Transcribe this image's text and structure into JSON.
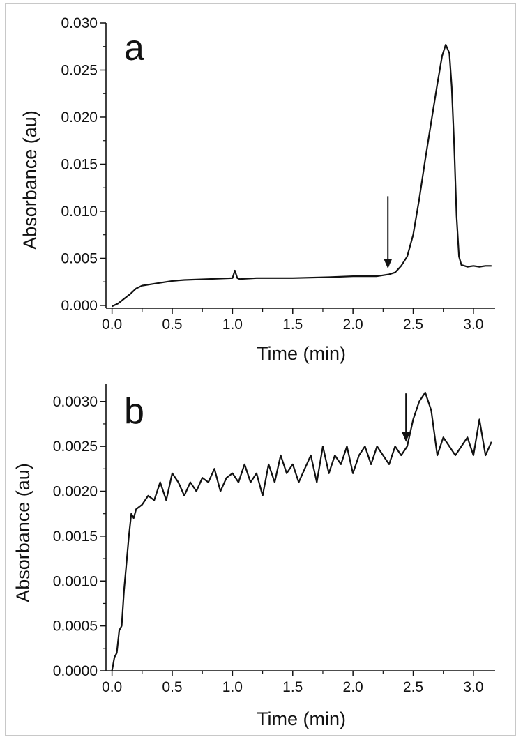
{
  "chart_data": [
    {
      "type": "line",
      "panel_label": "a",
      "xlabel": "Time (min)",
      "ylabel": "Absorbance (au)",
      "xlim": [
        -0.05,
        3.18
      ],
      "ylim": [
        -0.0003,
        0.03
      ],
      "x_ticks": [
        0.0,
        0.5,
        1.0,
        1.5,
        2.0,
        2.5,
        3.0
      ],
      "x_tick_labels": [
        "0.0",
        "0.5",
        "1.0",
        "1.5",
        "2.0",
        "2.5",
        "3.0"
      ],
      "y_ticks": [
        0.0,
        0.005,
        0.01,
        0.015,
        0.02,
        0.025,
        0.03
      ],
      "y_tick_labels": [
        "0.000",
        "0.005",
        "0.010",
        "0.015",
        "0.020",
        "0.025",
        "0.030"
      ],
      "arrow": {
        "x": 2.29,
        "y_from": 0.0116,
        "y_to": 0.0039
      },
      "series": [
        {
          "color": "#111111",
          "x": [
            0.0,
            0.05,
            0.1,
            0.15,
            0.2,
            0.25,
            0.3,
            0.4,
            0.5,
            0.6,
            0.8,
            1.0,
            1.02,
            1.04,
            1.06,
            1.2,
            1.5,
            1.8,
            2.0,
            2.2,
            2.3,
            2.35,
            2.4,
            2.45,
            2.5,
            2.55,
            2.6,
            2.65,
            2.7,
            2.74,
            2.77,
            2.8,
            2.82,
            2.84,
            2.86,
            2.88,
            2.9,
            2.95,
            3.0,
            3.05,
            3.1,
            3.15
          ],
          "y": [
            -0.0001,
            0.0002,
            0.0007,
            0.0012,
            0.0018,
            0.0021,
            0.0022,
            0.0024,
            0.0026,
            0.0027,
            0.0028,
            0.0029,
            0.0037,
            0.0029,
            0.0028,
            0.0029,
            0.0029,
            0.003,
            0.0031,
            0.0031,
            0.0033,
            0.0035,
            0.0042,
            0.0052,
            0.0075,
            0.0113,
            0.0155,
            0.0195,
            0.0235,
            0.0265,
            0.0277,
            0.0268,
            0.0232,
            0.017,
            0.0095,
            0.0052,
            0.0043,
            0.0041,
            0.0042,
            0.0041,
            0.0042,
            0.0042
          ]
        }
      ]
    },
    {
      "type": "line",
      "panel_label": "b",
      "xlabel": "Time (min)",
      "ylabel": "Absorbance (au)",
      "xlim": [
        -0.05,
        3.18
      ],
      "ylim": [
        0.0,
        0.0032
      ],
      "x_ticks": [
        0.0,
        0.5,
        1.0,
        1.5,
        2.0,
        2.5,
        3.0
      ],
      "x_tick_labels": [
        "0.0",
        "0.5",
        "1.0",
        "1.5",
        "2.0",
        "2.5",
        "3.0"
      ],
      "y_ticks": [
        0.0,
        0.0005,
        0.001,
        0.0015,
        0.002,
        0.0025,
        0.003
      ],
      "y_tick_labels": [
        "0.0000",
        "0.0005",
        "0.0010",
        "0.0015",
        "0.0020",
        "0.0025",
        "0.0030"
      ],
      "arrow": {
        "x": 2.44,
        "y_from": 0.00309,
        "y_to": 0.00255
      },
      "series": [
        {
          "color": "#111111",
          "x": [
            0.0,
            0.02,
            0.04,
            0.06,
            0.08,
            0.1,
            0.12,
            0.14,
            0.16,
            0.18,
            0.2,
            0.25,
            0.3,
            0.35,
            0.4,
            0.45,
            0.5,
            0.55,
            0.6,
            0.65,
            0.7,
            0.75,
            0.8,
            0.85,
            0.9,
            0.95,
            1.0,
            1.05,
            1.1,
            1.15,
            1.2,
            1.25,
            1.3,
            1.35,
            1.4,
            1.45,
            1.5,
            1.55,
            1.6,
            1.65,
            1.7,
            1.75,
            1.8,
            1.85,
            1.9,
            1.95,
            2.0,
            2.05,
            2.1,
            2.15,
            2.2,
            2.25,
            2.3,
            2.35,
            2.4,
            2.45,
            2.5,
            2.55,
            2.6,
            2.65,
            2.7,
            2.75,
            2.8,
            2.85,
            2.9,
            2.95,
            3.0,
            3.05,
            3.1,
            3.15
          ],
          "y": [
            0.0,
            0.00015,
            0.0002,
            0.00045,
            0.0005,
            0.0009,
            0.0012,
            0.0015,
            0.00175,
            0.0017,
            0.0018,
            0.00185,
            0.00195,
            0.0019,
            0.0021,
            0.0019,
            0.0022,
            0.0021,
            0.00195,
            0.0021,
            0.002,
            0.00215,
            0.0021,
            0.00225,
            0.002,
            0.00215,
            0.0022,
            0.0021,
            0.0023,
            0.0021,
            0.0022,
            0.00195,
            0.0023,
            0.0021,
            0.0024,
            0.0022,
            0.0023,
            0.0021,
            0.00225,
            0.0024,
            0.0021,
            0.0025,
            0.0022,
            0.0024,
            0.0023,
            0.0025,
            0.0022,
            0.0024,
            0.0025,
            0.0023,
            0.0025,
            0.0024,
            0.0023,
            0.0025,
            0.0024,
            0.0025,
            0.0028,
            0.003,
            0.0031,
            0.0029,
            0.0024,
            0.0026,
            0.0025,
            0.0024,
            0.0025,
            0.0026,
            0.0024,
            0.0028,
            0.0024,
            0.00255
          ]
        }
      ]
    }
  ]
}
